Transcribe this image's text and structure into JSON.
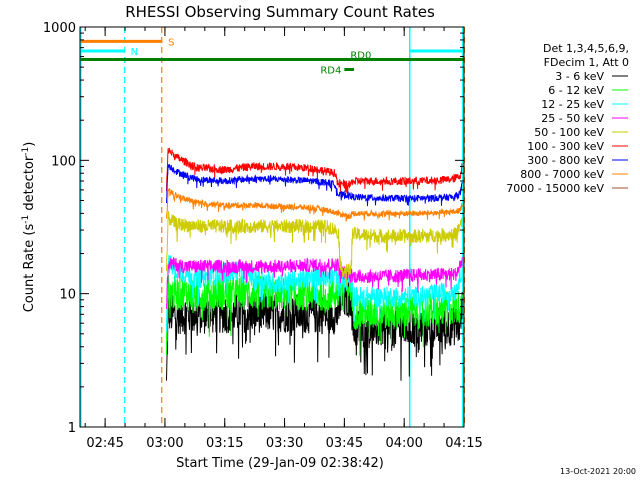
{
  "chart_data": {
    "type": "line",
    "title": "RHESSI Observing Summary Count Rates",
    "xlabel": "Start Time (29-Jan-09 02:38:42)",
    "ylabel_main": "Count Rate (s",
    "ylabel_sup1": "-1",
    "ylabel_mid": " detector",
    "ylabel_sup2": "-1",
    "ylabel_end": ")",
    "yscale": "log",
    "ylim": [
      1,
      1000
    ],
    "xlim_min": [
      158.7,
      255
    ],
    "x_ticks": [
      {
        "t": 165,
        "label": "02:45"
      },
      {
        "t": 180,
        "label": "03:00"
      },
      {
        "t": 195,
        "label": "03:15"
      },
      {
        "t": 210,
        "label": "03:30"
      },
      {
        "t": 225,
        "label": "03:45"
      },
      {
        "t": 240,
        "label": "04:00"
      },
      {
        "t": 255,
        "label": "04:15"
      }
    ],
    "y_ticks": [
      {
        "v": 1000,
        "label": "1000"
      },
      {
        "v": 100,
        "label": "100"
      },
      {
        "v": 10,
        "label": "10"
      },
      {
        "v": 1,
        "label": "1"
      }
    ],
    "legend": {
      "header": [
        "Det 1,3,4,5,6,9,",
        "FDecim 1, Att 0"
      ],
      "position": "right"
    },
    "series": [
      {
        "name": "3 - 6 keV",
        "color": "#000000",
        "noise": 0.35,
        "points": [
          [
            180.4,
            2
          ],
          [
            180.8,
            7.5
          ],
          [
            181.5,
            7
          ],
          [
            190,
            7
          ],
          [
            200,
            7.2
          ],
          [
            210,
            7.2
          ],
          [
            220,
            7
          ],
          [
            223.5,
            7
          ],
          [
            223.8,
            8.5
          ],
          [
            226.8,
            9.5
          ],
          [
            227.2,
            5.5
          ],
          [
            235,
            5.5
          ],
          [
            244,
            5.5
          ],
          [
            254,
            5.8
          ],
          [
            254.6,
            8
          ]
        ]
      },
      {
        "name": "6 - 12 keV",
        "color": "#00ff00",
        "noise": 0.3,
        "points": [
          [
            180.4,
            4
          ],
          [
            180.8,
            10.5
          ],
          [
            182,
            10
          ],
          [
            190,
            10
          ],
          [
            200,
            10.2
          ],
          [
            210,
            10
          ],
          [
            220,
            10
          ],
          [
            223.5,
            10
          ],
          [
            223.8,
            11.5
          ],
          [
            226.8,
            11.5
          ],
          [
            227.2,
            7.2
          ],
          [
            235,
            7.3
          ],
          [
            244,
            7.3
          ],
          [
            254,
            8
          ],
          [
            254.6,
            12
          ]
        ]
      },
      {
        "name": "12 - 25 keV",
        "color": "#00ffff",
        "noise": 0.18,
        "points": [
          [
            180.4,
            6
          ],
          [
            180.8,
            17
          ],
          [
            183,
            15
          ],
          [
            188,
            13
          ],
          [
            193,
            14
          ],
          [
            198,
            15
          ],
          [
            203,
            13
          ],
          [
            208,
            12
          ],
          [
            213,
            12.5
          ],
          [
            218,
            13.5
          ],
          [
            223.5,
            14
          ],
          [
            223.8,
            12
          ],
          [
            226.8,
            12
          ],
          [
            227.2,
            9.5
          ],
          [
            235,
            9.5
          ],
          [
            244,
            9.5
          ],
          [
            253,
            10.5
          ],
          [
            254.6,
            16
          ]
        ]
      },
      {
        "name": "25 - 50 keV",
        "color": "#ff00ff",
        "noise": 0.12,
        "points": [
          [
            180.4,
            8
          ],
          [
            180.8,
            17
          ],
          [
            185,
            16
          ],
          [
            190,
            16
          ],
          [
            200,
            16
          ],
          [
            210,
            16
          ],
          [
            220,
            16.5
          ],
          [
            223.5,
            16.5
          ],
          [
            223.8,
            14.5
          ],
          [
            226.8,
            14
          ],
          [
            227.2,
            13.5
          ],
          [
            235,
            13.5
          ],
          [
            244,
            13.8
          ],
          [
            253,
            14
          ],
          [
            254.6,
            18
          ]
        ]
      },
      {
        "name": "50 - 100 keV",
        "color": "#cccc00",
        "noise": 0.12,
        "points": [
          [
            180.4,
            15
          ],
          [
            180.8,
            37
          ],
          [
            183,
            33
          ],
          [
            190,
            32
          ],
          [
            200,
            32
          ],
          [
            210,
            32
          ],
          [
            220,
            32
          ],
          [
            222,
            31
          ],
          [
            223.5,
            29
          ],
          [
            224.2,
            15
          ],
          [
            226.6,
            15
          ],
          [
            227,
            28
          ],
          [
            235,
            27
          ],
          [
            244,
            27
          ],
          [
            253,
            28
          ],
          [
            254.6,
            35
          ]
        ]
      },
      {
        "name": "100 - 300 keV",
        "color": "#ff0000",
        "noise": 0.07,
        "points": [
          [
            180.4,
            60
          ],
          [
            180.8,
            120
          ],
          [
            183,
            105
          ],
          [
            188,
            88
          ],
          [
            195,
            85
          ],
          [
            202,
            90
          ],
          [
            210,
            90
          ],
          [
            217,
            87
          ],
          [
            221,
            82
          ],
          [
            222.8,
            80
          ],
          [
            223.4,
            67
          ],
          [
            226.5,
            65
          ],
          [
            227,
            70
          ],
          [
            235,
            70
          ],
          [
            244,
            70
          ],
          [
            252,
            72
          ],
          [
            254,
            76
          ],
          [
            254.6,
            92
          ]
        ]
      },
      {
        "name": "300 - 800 keV",
        "color": "#0000ff",
        "noise": 0.06,
        "points": [
          [
            180.4,
            50
          ],
          [
            180.8,
            92
          ],
          [
            183,
            82
          ],
          [
            188,
            72
          ],
          [
            195,
            70
          ],
          [
            202,
            73
          ],
          [
            210,
            72
          ],
          [
            217,
            70
          ],
          [
            221,
            68
          ],
          [
            222.8,
            66
          ],
          [
            223.4,
            55
          ],
          [
            226.5,
            55
          ],
          [
            227,
            53
          ],
          [
            235,
            52
          ],
          [
            244,
            52
          ],
          [
            252,
            53
          ],
          [
            254,
            56
          ],
          [
            254.6,
            67
          ]
        ]
      },
      {
        "name": "800 - 7000 keV",
        "color": "#ff8000",
        "noise": 0.05,
        "points": [
          [
            180.4,
            35
          ],
          [
            180.8,
            60
          ],
          [
            183,
            54
          ],
          [
            188,
            48
          ],
          [
            195,
            46
          ],
          [
            202,
            46
          ],
          [
            210,
            45
          ],
          [
            217,
            44
          ],
          [
            221,
            42
          ],
          [
            223.4,
            40
          ],
          [
            226.5,
            38
          ],
          [
            227,
            40
          ],
          [
            235,
            40
          ],
          [
            244,
            40
          ],
          [
            252,
            41
          ],
          [
            254,
            42
          ],
          [
            254.6,
            48
          ]
        ]
      },
      {
        "name": "7000 - 15000 keV",
        "color": "#a0522d",
        "noise": 0.02,
        "points": []
      }
    ],
    "overlays": {
      "night_cyan_verts": [
        158.9,
        241.4,
        254.7
      ],
      "saa_dashed": [
        {
          "t": 169.9,
          "color": "#00ffff"
        },
        {
          "t": 179.2,
          "color": "#ff8000"
        },
        {
          "t": 255.1,
          "color": "#ff8000"
        }
      ],
      "bars": [
        {
          "label": "S",
          "color": "#ff8000",
          "start": 158.9,
          "end": 179.3,
          "v": 780
        },
        {
          "label": "N",
          "color": "#00ffff",
          "start": 158.9,
          "end": 169.9,
          "v": 660
        },
        {
          "label": "",
          "color": "#00ffff",
          "start": 241.5,
          "end": 255,
          "v": 660
        },
        {
          "label": "RD0",
          "color": "#008000",
          "start": 158.9,
          "end": 255,
          "v": 570
        },
        {
          "label": "RD4",
          "color": "#008000",
          "start": 225.0,
          "end": 227.4,
          "v": 480
        }
      ]
    }
  },
  "footer_date": "13-Oct-2021 20:00"
}
